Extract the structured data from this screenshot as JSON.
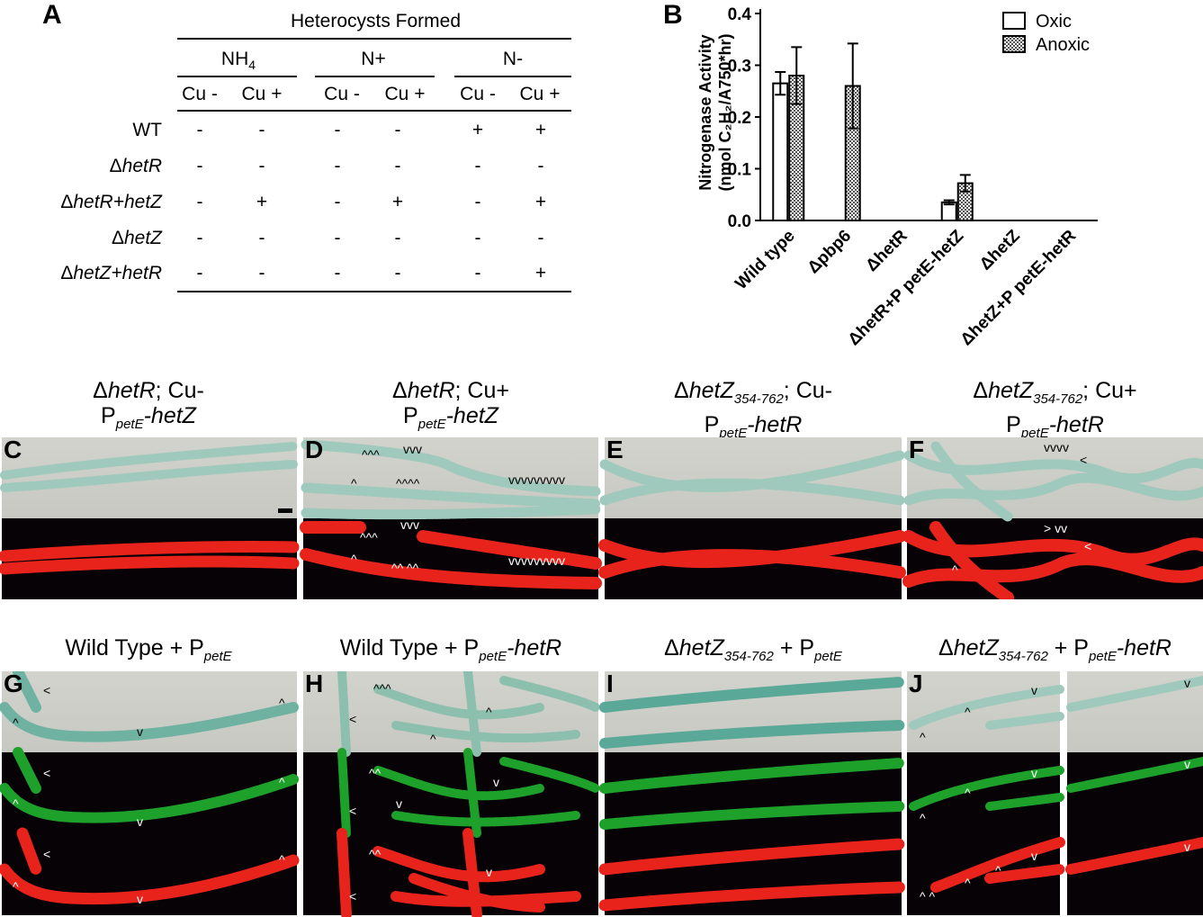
{
  "panel_a": {
    "label": "A",
    "title": "Heterocysts Formed",
    "groups": [
      "NH",
      "N+",
      "N-"
    ],
    "nh_sub": "4",
    "conditions": [
      "Cu -",
      "Cu +",
      "Cu -",
      "Cu +",
      "Cu -",
      "Cu +"
    ],
    "rows": [
      {
        "label_pre": "WT",
        "label_it": "",
        "label_post": "",
        "values": [
          "-",
          "-",
          "-",
          "-",
          "+",
          "+"
        ]
      },
      {
        "label_pre": "Δ",
        "label_it": "hetR",
        "label_post": "",
        "values": [
          "-",
          "-",
          "-",
          "-",
          "-",
          "-"
        ]
      },
      {
        "label_pre": "Δ",
        "label_it": "hetR",
        "label_post": "+hetZ",
        "values": [
          "-",
          "+",
          "-",
          "+",
          "-",
          "+"
        ]
      },
      {
        "label_pre": "Δ",
        "label_it": "hetZ",
        "label_post": "",
        "values": [
          "-",
          "-",
          "-",
          "-",
          "-",
          "-"
        ]
      },
      {
        "label_pre": "Δ",
        "label_it": "hetZ",
        "label_post": "+hetR",
        "values": [
          "-",
          "-",
          "-",
          "-",
          "-",
          "+"
        ]
      }
    ]
  },
  "panel_b": {
    "label": "B",
    "legend": [
      "Oxic",
      "Anoxic"
    ],
    "ylabel_line1": "Nitrogenase Activity",
    "ylabel_line2": "(nmol C₂H₂/A750*hr)",
    "yticks": [
      "0.0",
      "0.1",
      "0.2",
      "0.3",
      "0.4"
    ],
    "xlabels": [
      "Wild type",
      "Δpbp6",
      "ΔhetR",
      "ΔhetR+P petE-hetZ",
      "ΔhetZ",
      "ΔhetZ+P petE-hetR"
    ]
  },
  "chart_data": {
    "type": "bar",
    "categories": [
      "Wild type",
      "Δpbp6",
      "ΔhetR",
      "ΔhetR+P petE-hetZ",
      "ΔhetZ",
      "ΔhetZ+P petE-hetR"
    ],
    "series": [
      {
        "name": "Oxic",
        "values": [
          0.265,
          0,
          0,
          0.035,
          0,
          0
        ],
        "errors": [
          0.022,
          0,
          0,
          0.004,
          0,
          0
        ]
      },
      {
        "name": "Anoxic",
        "values": [
          0.28,
          0.26,
          0,
          0.072,
          0,
          0
        ],
        "errors": [
          0.055,
          0.082,
          0,
          0.016,
          0,
          0
        ]
      }
    ],
    "ylabel": "Nitrogenase Activity (nmol C2H2/A750*hr)",
    "ylim": [
      0,
      0.4
    ],
    "legend_position": "top-right"
  },
  "micrographs": {
    "row1": [
      {
        "label": "C",
        "line1_pre": "Δ",
        "line1_it": "hetR",
        "line1_post": "; Cu-",
        "line2_pre": "P",
        "line2_sub": "petE",
        "line2_it": "-hetZ"
      },
      {
        "label": "D",
        "line1_pre": "Δ",
        "line1_it": "hetR",
        "line1_post": "; Cu+",
        "line2_pre": "P",
        "line2_sub": "petE",
        "line2_it": "-hetZ"
      },
      {
        "label": "E",
        "line1_pre": "Δ",
        "line1_it": "hetZ",
        "line1_sub": "354-762",
        "line1_post": "; Cu-",
        "line2_pre": "P",
        "line2_sub": "petE",
        "line2_it": "-hetR"
      },
      {
        "label": "F",
        "line1_pre": "Δ",
        "line1_it": "hetZ",
        "line1_sub": "354-762",
        "line1_post": "; Cu+",
        "line2_pre": "P",
        "line2_sub": "petE",
        "line2_it": "-hetR"
      }
    ],
    "row2": [
      {
        "label": "G",
        "text_pre": "Wild Type + P",
        "text_sub": "petE",
        "text_it": ""
      },
      {
        "label": "H",
        "text_pre": "Wild Type + P",
        "text_sub": "petE",
        "text_it": "-hetR"
      },
      {
        "label": "I",
        "text_pre": "Δ",
        "text_it": "hetZ",
        "text_sub": "354-762",
        "text_post": " + P",
        "text_sub2": "petE"
      },
      {
        "label": "J",
        "text_pre": "Δ",
        "text_it": "hetZ",
        "text_sub": "354-762",
        "text_post": " + P",
        "text_sub2": "petE",
        "text_it2": "-hetR"
      }
    ],
    "colors": {
      "bright": "#c9cbc4",
      "filament": "#8fbfb0",
      "red": "#e8231c",
      "green": "#1da12a",
      "dark": "#060206"
    }
  }
}
